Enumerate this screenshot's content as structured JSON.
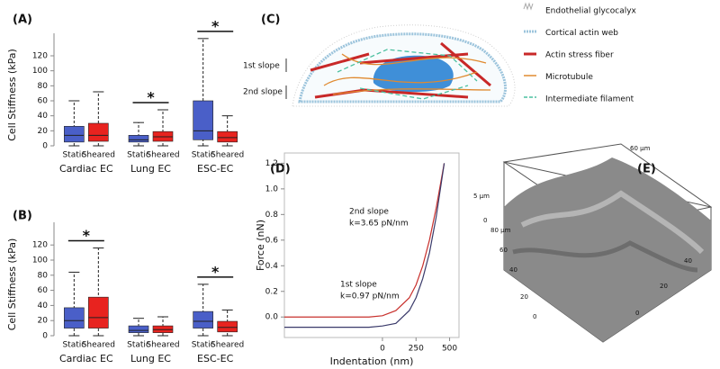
{
  "chart_data": [
    {
      "type": "box",
      "panel": "(A)",
      "ylabel": "Cell Stiffness (kPa)",
      "categories": [
        "Cardiac EC",
        "Lung EC",
        "ESC-EC"
      ],
      "series": [
        {
          "name": "Static",
          "color": "#4a5fc8",
          "low": [
            0,
            0,
            0
          ],
          "q1": [
            5,
            5,
            8
          ],
          "median": [
            14,
            8,
            20
          ],
          "q3": [
            26,
            14,
            60
          ],
          "high": [
            60,
            31,
            143
          ]
        },
        {
          "name": "Sheared",
          "color": "#e8231f",
          "low": [
            0,
            0,
            0
          ],
          "q1": [
            6,
            6,
            5
          ],
          "median": [
            14,
            12,
            11
          ],
          "q3": [
            30,
            19,
            19
          ],
          "high": [
            72,
            48,
            40
          ]
        }
      ],
      "significant": [
        false,
        true,
        true
      ],
      "marker": "*",
      "ylim": [
        0,
        150
      ],
      "yticks": [
        0,
        20,
        40,
        60,
        80,
        100,
        120
      ]
    },
    {
      "type": "box",
      "panel": "(B)",
      "ylabel": "Cell Stiffness (kPa)",
      "categories": [
        "Cardiac EC",
        "Lung EC",
        "ESC-EC"
      ],
      "series": [
        {
          "name": "Static",
          "color": "#4a5fc8",
          "low": [
            0,
            0,
            0
          ],
          "q1": [
            10,
            4,
            10
          ],
          "median": [
            20,
            7,
            19
          ],
          "q3": [
            37,
            13,
            32
          ],
          "high": [
            84,
            23,
            68
          ]
        },
        {
          "name": "Sheared",
          "color": "#e8231f",
          "low": [
            0,
            0,
            0
          ],
          "q1": [
            10,
            4,
            5
          ],
          "median": [
            24,
            8,
            11
          ],
          "q3": [
            51,
            13,
            19
          ],
          "high": [
            116,
            25,
            34
          ]
        }
      ],
      "significant": [
        true,
        false,
        true
      ],
      "marker": "*",
      "ylim": [
        0,
        150
      ],
      "yticks": [
        0,
        20,
        40,
        60,
        80,
        100,
        120
      ]
    },
    {
      "type": "line",
      "panel": "(D)",
      "xlabel": "Indentation (nm)",
      "ylabel": "Force (nN)",
      "series": [
        {
          "color": "#c8302c",
          "x": [
            -730,
            -400,
            -100,
            0,
            100,
            200,
            250,
            300,
            350,
            400,
            460
          ],
          "values": [
            0,
            0,
            0,
            0.01,
            0.05,
            0.15,
            0.25,
            0.4,
            0.6,
            0.85,
            1.2
          ]
        },
        {
          "color": "#3a3a6a",
          "x": [
            -730,
            -400,
            -100,
            0,
            100,
            200,
            250,
            300,
            350,
            400,
            460
          ],
          "values": [
            -0.08,
            -0.08,
            -0.08,
            -0.07,
            -0.05,
            0.05,
            0.15,
            0.3,
            0.5,
            0.78,
            1.2
          ]
        }
      ],
      "annotations": [
        "2nd slope",
        "k=3.65 pN/nm",
        "1st slope",
        "k=0.97 pN/nm"
      ],
      "xlim": [
        -730,
        570
      ],
      "xticks": [
        0,
        250,
        500
      ],
      "ylim": [
        -0.16,
        1.28
      ],
      "yticks": [
        {
          "value": 0,
          "label": "0.0"
        },
        0.2,
        0.4,
        0.6,
        0.8,
        {
          "value": 1,
          "label": "1.0"
        },
        1.2
      ]
    }
  ],
  "diagram": {
    "panel": "(C)",
    "labels": [
      "1st slope",
      "2nd slope"
    ],
    "legend": [
      "Endothelial glycocalyx",
      "Cortical actin web",
      "Actin stress fiber",
      "Microtubule",
      "Intermediate filament"
    ]
  },
  "image": {
    "panel": "(E)",
    "labels": [
      "5 μm",
      "0",
      "80 μm",
      "60",
      "40",
      "20",
      "0",
      "60 μm",
      "40",
      "20",
      "0"
    ]
  }
}
